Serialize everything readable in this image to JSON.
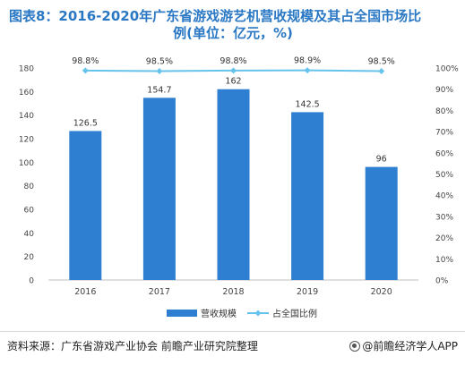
{
  "title": {
    "line1": "图表8：2016-2020年广东省游戏游艺机营收规模及其占全国市场比",
    "line2": "例(单位：亿元，%)"
  },
  "source": "资料来源：广东省游戏产业协会 前瞻产业研究院整理",
  "brand": "@前瞻经济学人APP",
  "colors": {
    "bar": "#2e7fd1",
    "line": "#66c3ec",
    "title": "#2a78c4"
  },
  "chart_data": {
    "type": "bar",
    "categories": [
      "2016",
      "2017",
      "2018",
      "2019",
      "2020"
    ],
    "series": [
      {
        "name": "营收规模",
        "type": "bar",
        "axis": "left",
        "values": [
          126.5,
          154.7,
          162,
          142.5,
          96
        ],
        "labels": [
          "126.5",
          "154.7",
          "162",
          "142.5",
          "96"
        ]
      },
      {
        "name": "占全国比例",
        "type": "line",
        "axis": "right",
        "values": [
          98.8,
          98.5,
          98.8,
          98.9,
          98.5
        ],
        "labels": [
          "98.8%",
          "98.5%",
          "98.8%",
          "98.9%",
          "98.5%"
        ]
      }
    ],
    "y_left": {
      "range": [
        0,
        180
      ],
      "ticks": [
        0,
        20,
        40,
        60,
        80,
        100,
        120,
        140,
        160,
        180
      ]
    },
    "y_right": {
      "range": [
        0,
        100
      ],
      "ticks": [
        "0%",
        "10%",
        "20%",
        "30%",
        "40%",
        "50%",
        "60%",
        "70%",
        "80%",
        "90%",
        "100%"
      ]
    },
    "grid": false,
    "legend_position": "bottom"
  }
}
